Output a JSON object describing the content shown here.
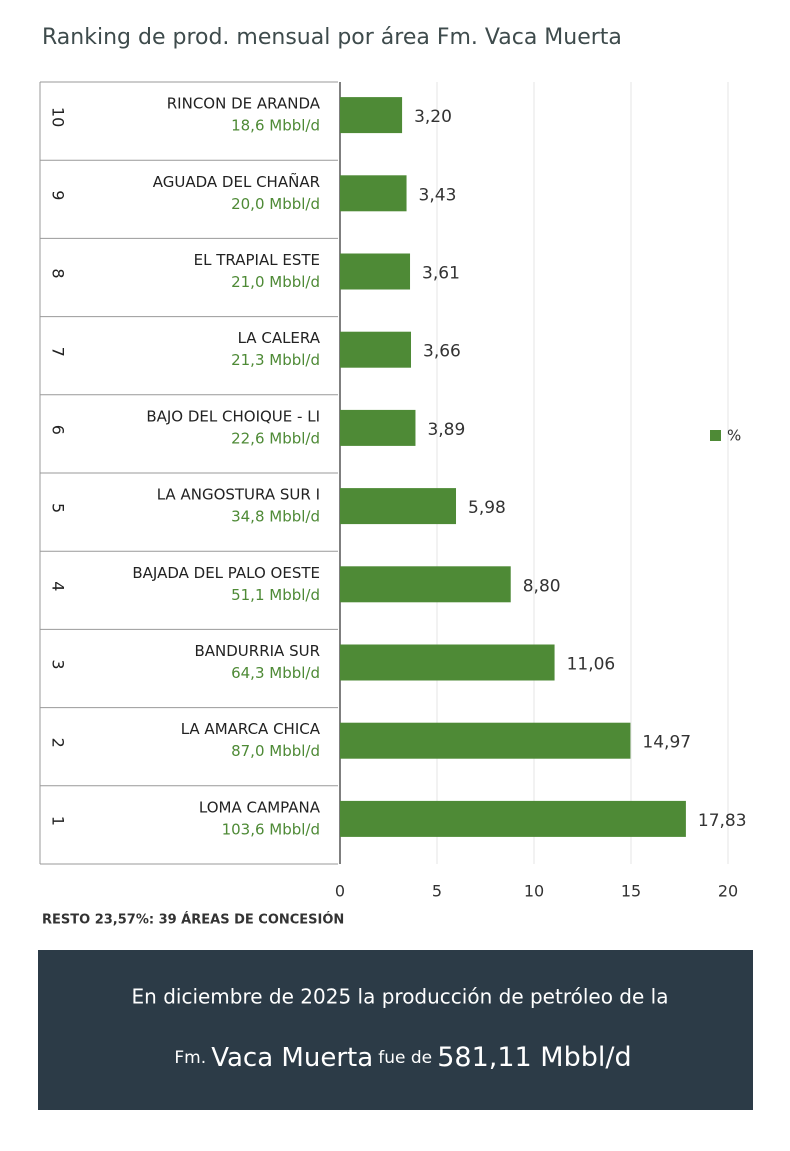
{
  "chart_data": {
    "type": "bar",
    "orientation": "horizontal",
    "title": "Ranking de prod. mensual por área Fm. Vaca Muerta",
    "ranks": [
      10,
      9,
      8,
      7,
      6,
      5,
      4,
      3,
      2,
      1
    ],
    "categories": [
      "RINCON DE ARANDA",
      "AGUADA DEL CHAÑAR",
      "EL TRAPIAL ESTE",
      "LA CALERA",
      "BAJO DEL CHOIQUE - LI",
      "LA ANGOSTURA SUR I",
      "BAJADA DEL PALO OESTE",
      "BANDURRIA SUR",
      "LA AMARCA CHICA",
      "LOMA CAMPANA"
    ],
    "production": [
      "18,6 Mbbl/d",
      "20,0 Mbbl/d",
      "21,0 Mbbl/d",
      "21,3 Mbbl/d",
      "22,6 Mbbl/d",
      "34,8 Mbbl/d",
      "51,1 Mbbl/d",
      "64,3 Mbbl/d",
      "87,0 Mbbl/d",
      "103,6 Mbbl/d"
    ],
    "series": [
      {
        "name": "%",
        "color": "#4e8a36",
        "values": [
          3.2,
          3.43,
          3.61,
          3.66,
          3.89,
          5.98,
          8.8,
          11.06,
          14.97,
          17.83
        ],
        "value_labels": [
          "3,20",
          "3,43",
          "3,61",
          "3,66",
          "3,89",
          "5,98",
          "8,80",
          "11,06",
          "14,97",
          "17,83"
        ]
      }
    ],
    "xlim": [
      0,
      20
    ],
    "xticks": [
      0,
      5,
      10,
      15,
      20
    ],
    "grid": true,
    "legend": "right",
    "footnote": "RESTO 23,57%: 39 ÁREAS DE CONCESIÓN"
  },
  "banner": {
    "line1": "En diciembre de 2025 la producción de petróleo de la",
    "prefix": "Fm.",
    "name": "Vaca Muerta",
    "middle": "fue de",
    "total": "581,11 Mbbl/d"
  }
}
